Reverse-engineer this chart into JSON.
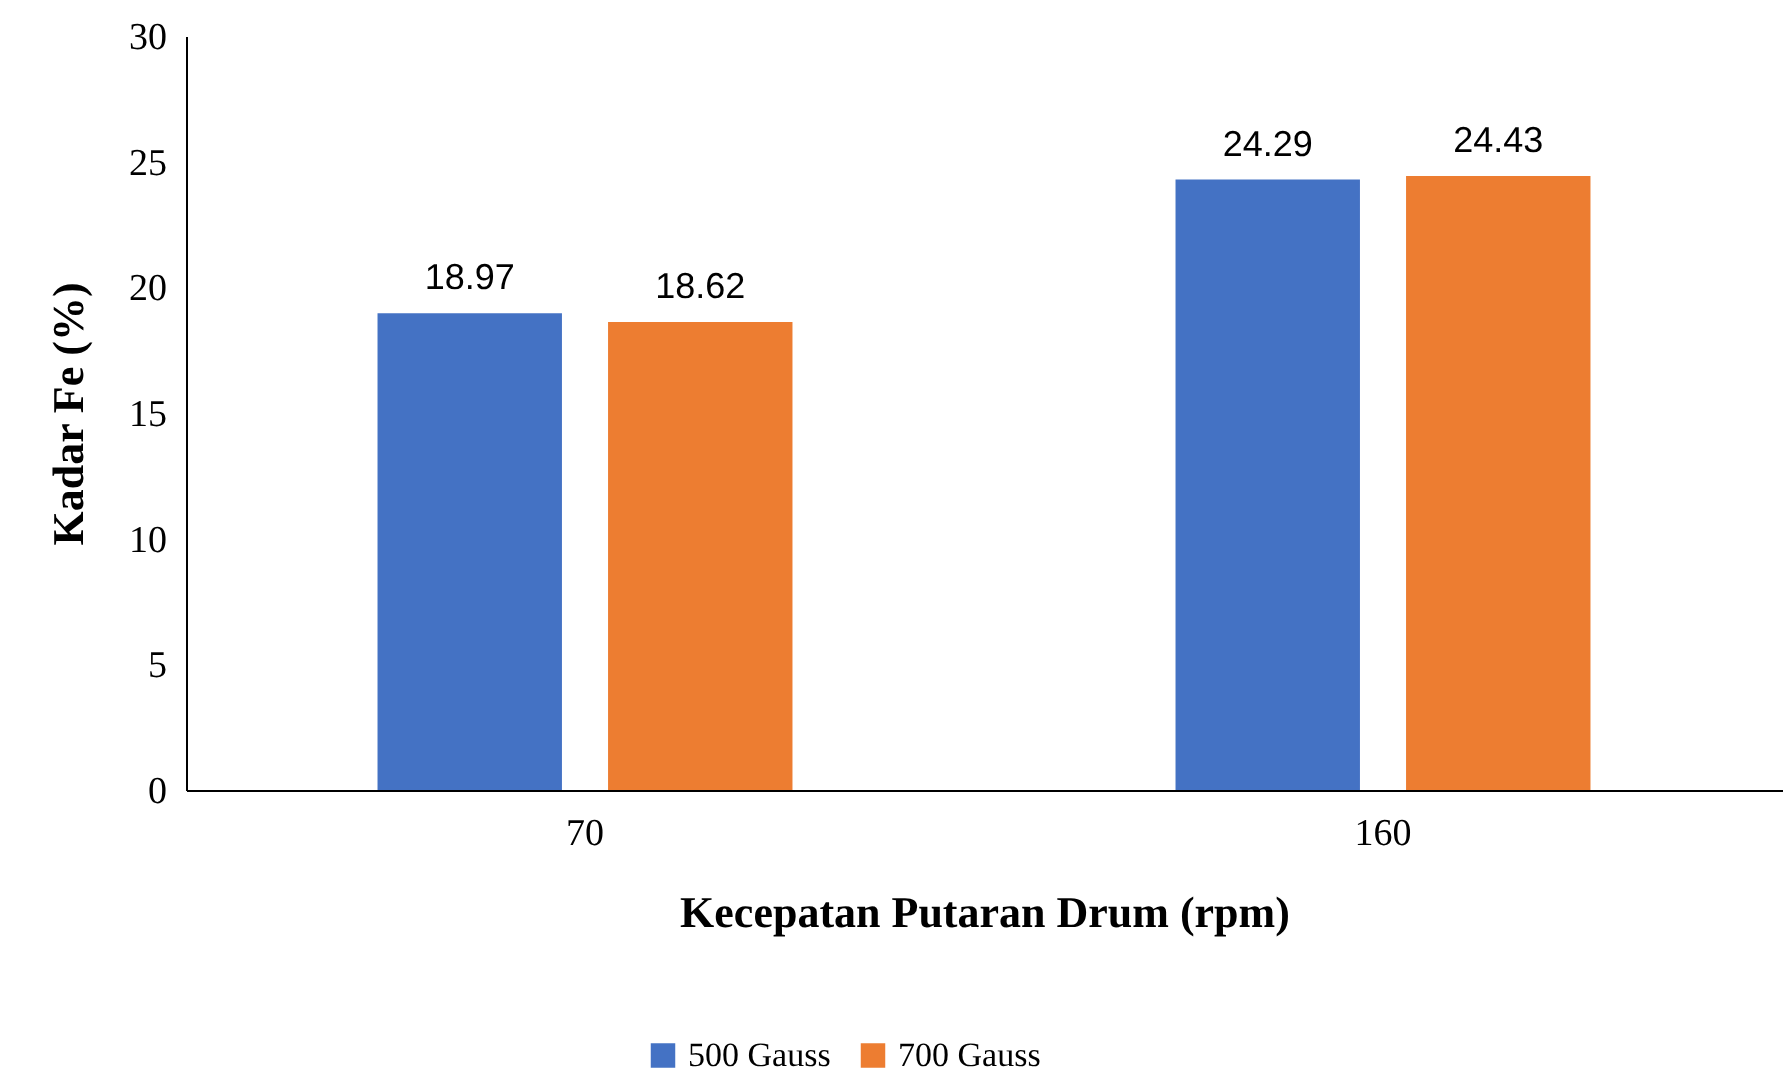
{
  "chart_data": {
    "type": "bar",
    "xlabel": "Kecepatan Putaran Drum (rpm)",
    "ylabel": "Kadar Fe (%)",
    "categories": [
      "70",
      "160"
    ],
    "series": [
      {
        "name": "500 Gauss",
        "color": "#4472c4",
        "values": [
          18.97,
          24.29
        ]
      },
      {
        "name": "700 Gauss",
        "color": "#ed7d31",
        "values": [
          18.62,
          24.43
        ]
      }
    ],
    "ylim": [
      0,
      30
    ],
    "yticks": [
      0,
      5,
      10,
      15,
      20,
      25,
      30
    ],
    "grid": false,
    "legend": "bottom",
    "data_labels": true
  }
}
